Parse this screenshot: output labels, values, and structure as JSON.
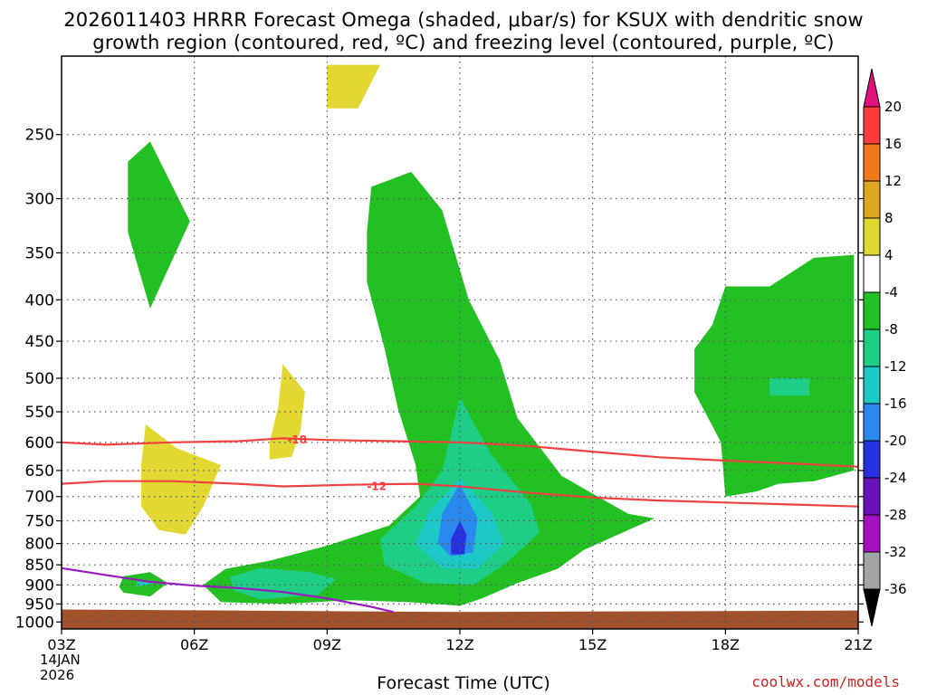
{
  "chart_data": {
    "type": "heatmap",
    "title_line1": "2026011403 HRRR Forecast Omega (shaded, μbar/s) for KSUX with dendritic snow",
    "title_line2": "growth region (contoured, red, ºC) and freezing level (contoured, purple, ºC)",
    "xlabel": "Forecast Time (UTC)",
    "x_ticks": [
      "03Z",
      "06Z",
      "09Z",
      "12Z",
      "15Z",
      "18Z",
      "21Z"
    ],
    "x_start_date_line1": "14JAN",
    "x_start_date_line2": "2026",
    "y_ticks": [
      250,
      300,
      350,
      400,
      450,
      500,
      550,
      600,
      650,
      700,
      750,
      800,
      850,
      900,
      950,
      1000
    ],
    "ylim": [
      1000,
      200
    ],
    "colorbar_ticks": [
      20,
      16,
      12,
      8,
      4,
      -4,
      -8,
      -12,
      -16,
      -20,
      -24,
      -28,
      -32,
      -36
    ],
    "colorbar_colors": [
      "#ff3b3b",
      "#f07a1a",
      "#e0a620",
      "#e3d732",
      "#ffffff",
      "#23c023",
      "#1fce86",
      "#1cc9c6",
      "#2b88ec",
      "#2631e0",
      "#6a10b8",
      "#a410c2",
      "#a4a4a4"
    ],
    "colorbar_top_color": "#e0127a",
    "colorbar_bottom_color": "#000000",
    "contours": [
      {
        "label": "-18",
        "color": "#f04040",
        "points": [
          [
            3.0,
            600
          ],
          [
            4.0,
            604
          ],
          [
            5.5,
            600
          ],
          [
            7.0,
            598
          ],
          [
            8.0,
            593
          ],
          [
            9.0,
            596
          ],
          [
            10.5,
            598
          ],
          [
            12.0,
            600
          ],
          [
            13.5,
            606
          ],
          [
            15.0,
            616
          ],
          [
            16.5,
            626
          ],
          [
            18.0,
            632
          ],
          [
            19.5,
            637
          ],
          [
            21.0,
            643
          ]
        ]
      },
      {
        "label": "-12",
        "color": "#f04040",
        "points": [
          [
            3.0,
            675
          ],
          [
            4.0,
            670
          ],
          [
            5.5,
            670
          ],
          [
            7.0,
            675
          ],
          [
            8.0,
            680
          ],
          [
            9.5,
            677
          ],
          [
            11.0,
            675
          ],
          [
            12.0,
            680
          ],
          [
            13.5,
            692
          ],
          [
            15.0,
            702
          ],
          [
            16.5,
            708
          ],
          [
            18.0,
            712
          ],
          [
            19.5,
            716
          ],
          [
            21.0,
            720
          ]
        ]
      },
      {
        "label": "",
        "color": "#9a18c0",
        "points": [
          [
            3.0,
            858
          ],
          [
            4.0,
            875
          ],
          [
            5.0,
            892
          ],
          [
            6.0,
            902
          ],
          [
            7.0,
            908
          ],
          [
            8.0,
            918
          ],
          [
            9.0,
            935
          ],
          [
            10.0,
            958
          ],
          [
            10.5,
            972
          ]
        ]
      }
    ],
    "regions": [
      {
        "level": "-8",
        "color": "#23c023",
        "points": [
          [
            5.0,
            255
          ],
          [
            5.9,
            320
          ],
          [
            5.0,
            410
          ],
          [
            4.5,
            330
          ],
          [
            4.5,
            270
          ]
        ]
      },
      {
        "level": "-8",
        "color": "#23c023",
        "points": [
          [
            10.0,
            290
          ],
          [
            10.9,
            278
          ],
          [
            11.6,
            310
          ],
          [
            12.2,
            400
          ],
          [
            12.9,
            475
          ],
          [
            13.3,
            560
          ],
          [
            14.3,
            660
          ],
          [
            15.8,
            735
          ],
          [
            16.4,
            745
          ],
          [
            15.8,
            770
          ],
          [
            14.8,
            815
          ],
          [
            14.2,
            860
          ],
          [
            13.3,
            895
          ],
          [
            12.5,
            935
          ],
          [
            12.0,
            955
          ],
          [
            10.8,
            945
          ],
          [
            9.5,
            940
          ],
          [
            8.0,
            950
          ],
          [
            6.6,
            945
          ],
          [
            6.2,
            900
          ],
          [
            6.7,
            860
          ],
          [
            7.7,
            840
          ],
          [
            9.0,
            805
          ],
          [
            10.4,
            760
          ],
          [
            11.1,
            700
          ],
          [
            11.0,
            640
          ],
          [
            10.6,
            545
          ],
          [
            10.3,
            460
          ],
          [
            9.9,
            380
          ],
          [
            9.9,
            330
          ]
        ]
      },
      {
        "level": "-8",
        "color": "#23c023",
        "points": [
          [
            4.4,
            878
          ],
          [
            5.0,
            868
          ],
          [
            5.4,
            895
          ],
          [
            5.0,
            930
          ],
          [
            4.4,
            920
          ],
          [
            4.3,
            905
          ]
        ]
      },
      {
        "level": "-8",
        "color": "#23c023",
        "points": [
          [
            18.0,
            385
          ],
          [
            19.0,
            385
          ],
          [
            20.0,
            355
          ],
          [
            20.9,
            352
          ],
          [
            20.9,
            650
          ],
          [
            20.0,
            670
          ],
          [
            19.2,
            675
          ],
          [
            18.7,
            690
          ],
          [
            18.0,
            700
          ],
          [
            17.9,
            600
          ],
          [
            17.3,
            520
          ],
          [
            17.3,
            460
          ],
          [
            17.7,
            430
          ]
        ]
      },
      {
        "level": "-12",
        "color": "#1fce86",
        "points": [
          [
            12.0,
            528
          ],
          [
            12.7,
            620
          ],
          [
            13.6,
            715
          ],
          [
            13.8,
            775
          ],
          [
            13.0,
            850
          ],
          [
            12.3,
            900
          ],
          [
            11.2,
            895
          ],
          [
            10.3,
            850
          ],
          [
            10.2,
            790
          ],
          [
            11.0,
            720
          ],
          [
            11.6,
            650
          ]
        ]
      },
      {
        "level": "-12",
        "color": "#1fce86",
        "points": [
          [
            6.8,
            880
          ],
          [
            7.5,
            858
          ],
          [
            8.6,
            868
          ],
          [
            9.2,
            885
          ],
          [
            8.8,
            925
          ],
          [
            7.5,
            938
          ],
          [
            6.9,
            915
          ]
        ]
      },
      {
        "level": "-12",
        "color": "#1fce86",
        "points": [
          [
            19.0,
            500
          ],
          [
            19.9,
            500
          ],
          [
            19.9,
            525
          ],
          [
            19.0,
            525
          ]
        ]
      },
      {
        "level": "-16",
        "color": "#1cc9c6",
        "points": [
          [
            12.0,
            665
          ],
          [
            12.7,
            730
          ],
          [
            13.0,
            800
          ],
          [
            12.4,
            860
          ],
          [
            11.6,
            858
          ],
          [
            11.0,
            800
          ],
          [
            11.3,
            730
          ]
        ]
      },
      {
        "level": "-16",
        "color": "#1cc9c6",
        "points": [
          [
            4.7,
            890
          ],
          [
            5.1,
            897
          ],
          [
            4.7,
            904
          ]
        ]
      },
      {
        "level": "-20",
        "color": "#2b88ec",
        "points": [
          [
            12.0,
            675
          ],
          [
            12.4,
            745
          ],
          [
            12.3,
            820
          ],
          [
            11.8,
            830
          ],
          [
            11.5,
            800
          ],
          [
            11.6,
            735
          ]
        ]
      },
      {
        "level": "-24",
        "color": "#2631e0",
        "points": [
          [
            12.0,
            750
          ],
          [
            12.15,
            780
          ],
          [
            12.1,
            825
          ],
          [
            11.8,
            825
          ],
          [
            11.8,
            790
          ]
        ]
      },
      {
        "level": "4",
        "color": "#e3d732",
        "points": [
          [
            4.9,
            570
          ],
          [
            5.6,
            610
          ],
          [
            6.6,
            640
          ],
          [
            6.2,
            720
          ],
          [
            5.8,
            780
          ],
          [
            5.2,
            770
          ],
          [
            4.8,
            720
          ],
          [
            4.8,
            640
          ]
        ]
      },
      {
        "level": "4",
        "color": "#e3d732",
        "points": [
          [
            8.0,
            480
          ],
          [
            8.5,
            520
          ],
          [
            8.4,
            580
          ],
          [
            8.2,
            625
          ],
          [
            7.7,
            630
          ],
          [
            7.7,
            600
          ],
          [
            7.9,
            540
          ]
        ]
      },
      {
        "level": "4",
        "color": "#e3d732",
        "points": [
          [
            9.0,
            205
          ],
          [
            10.2,
            205
          ],
          [
            9.7,
            232
          ],
          [
            9.0,
            232
          ]
        ]
      }
    ],
    "ground_color": "#a0522d",
    "grid": "dotted"
  },
  "credit": "coolwx.com/models"
}
